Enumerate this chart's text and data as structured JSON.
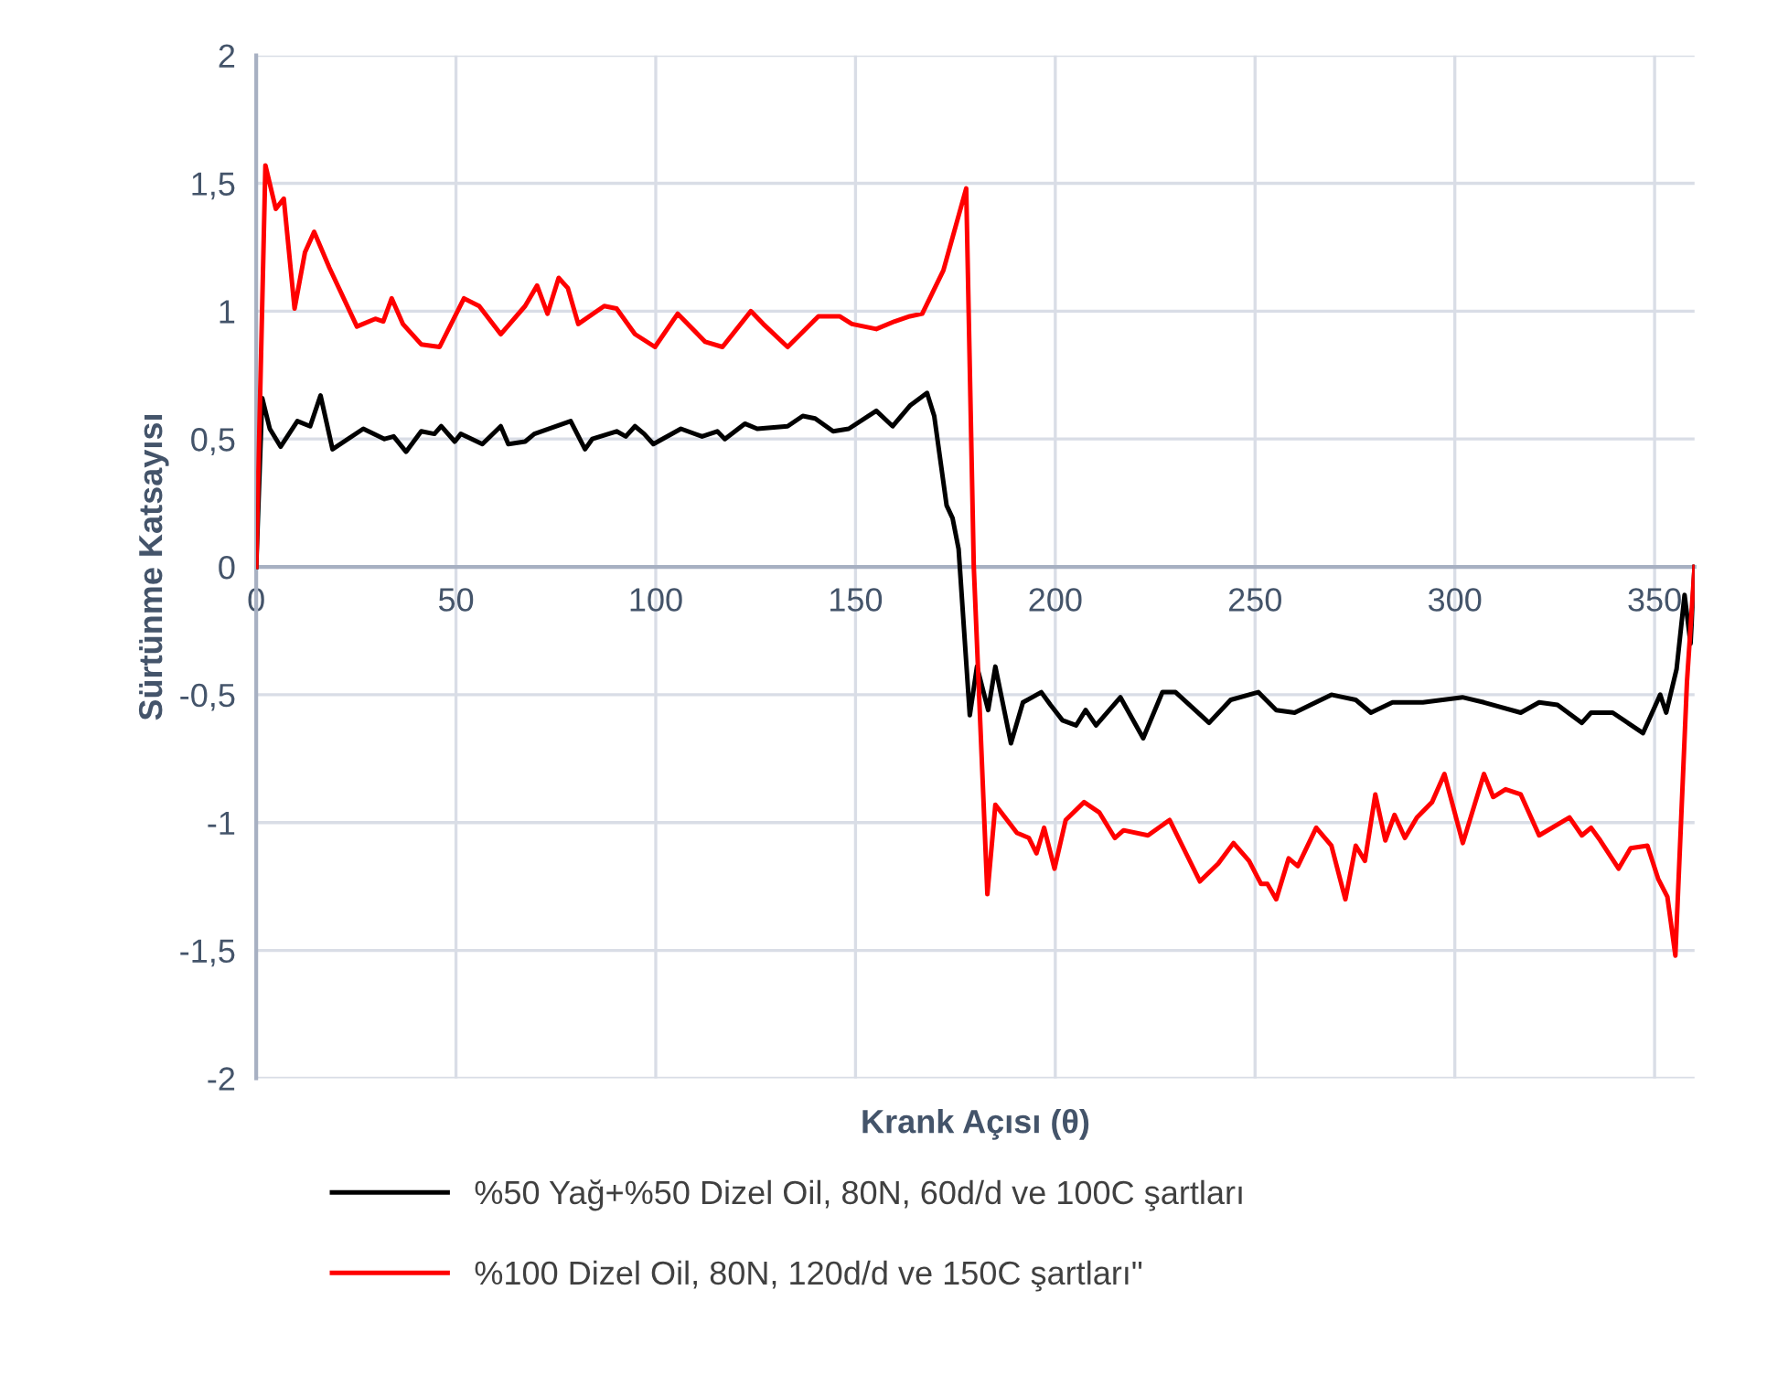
{
  "chart_data": {
    "type": "line",
    "xlabel": "Krank Açısı (θ)",
    "ylabel": "Sürtünme Katsayısı",
    "xlim": [
      0,
      360
    ],
    "xticks": [
      0,
      50,
      100,
      150,
      200,
      250,
      300,
      350
    ],
    "ylim": [
      -2,
      2
    ],
    "yticks": [
      {
        "value": -2,
        "label": "-2"
      },
      {
        "value": -1.5,
        "label": "-1,5"
      },
      {
        "value": -1,
        "label": "-1"
      },
      {
        "value": -0.5,
        "label": "-0,5"
      },
      {
        "value": 0,
        "label": "0"
      },
      {
        "value": 0.5,
        "label": "0,5"
      },
      {
        "value": 1,
        "label": "1"
      },
      {
        "value": 1.5,
        "label": "1,5"
      },
      {
        "value": 2,
        "label": "2"
      }
    ],
    "grid": true,
    "legend": "bottom",
    "marker": "none",
    "line_style": "solid",
    "series": [
      {
        "name": "%50 Yağ+%50 Dizel Oil, 80N, 60d/d ve 100C şartları",
        "color": "#000000",
        "x": [
          0,
          1.5,
          3.4,
          6.1,
          10.3,
          13.5,
          16.1,
          19.1,
          26.8,
          32.1,
          34.4,
          37.5,
          41.3,
          44.6,
          46.3,
          49.7,
          51.2,
          56.6,
          61.2,
          63.1,
          67.3,
          69.6,
          78.7,
          82.3,
          84.1,
          90.2,
          92.5,
          94.8,
          97.1,
          99.4,
          106.3,
          111.6,
          115.4,
          117.3,
          122.3,
          125.4,
          133,
          136.8,
          139.9,
          144.4,
          148.3,
          155.2,
          159.3,
          163.6,
          167.9,
          169.7,
          172.8,
          174.3,
          175.8,
          178.6,
          180.4,
          183.2,
          185,
          188.9,
          191.9,
          196.5,
          198.8,
          201.8,
          205.2,
          207.6,
          210.2,
          216.3,
          222,
          226.8,
          230.1,
          238.5,
          243.9,
          250.8,
          255.3,
          259.9,
          269.1,
          275.2,
          279,
          284.4,
          292,
          301.9,
          307.3,
          316.5,
          321.1,
          325.7,
          331.8,
          334.1,
          339.5,
          347.1,
          351.4,
          352.9,
          355.5,
          357.5,
          359,
          360
        ],
        "values": [
          0,
          0.66,
          0.54,
          0.47,
          0.57,
          0.55,
          0.67,
          0.46,
          0.54,
          0.5,
          0.51,
          0.45,
          0.53,
          0.52,
          0.55,
          0.49,
          0.52,
          0.48,
          0.55,
          0.48,
          0.49,
          0.52,
          0.57,
          0.46,
          0.5,
          0.53,
          0.51,
          0.55,
          0.52,
          0.48,
          0.54,
          0.51,
          0.53,
          0.5,
          0.56,
          0.54,
          0.55,
          0.59,
          0.58,
          0.53,
          0.54,
          0.61,
          0.55,
          0.63,
          0.68,
          0.59,
          0.24,
          0.19,
          0.07,
          -0.58,
          -0.39,
          -0.56,
          -0.39,
          -0.69,
          -0.53,
          -0.49,
          -0.54,
          -0.6,
          -0.62,
          -0.56,
          -0.62,
          -0.51,
          -0.67,
          -0.49,
          -0.49,
          -0.61,
          -0.52,
          -0.49,
          -0.56,
          -0.57,
          -0.5,
          -0.52,
          -0.57,
          -0.53,
          -0.53,
          -0.51,
          -0.53,
          -0.57,
          -0.53,
          -0.54,
          -0.61,
          -0.57,
          -0.57,
          -0.65,
          -0.5,
          -0.57,
          -0.4,
          -0.11,
          -0.3,
          0
        ]
      },
      {
        "name": "%100 Dizel Oil, 80N, 120d/d ve 150C şartları\"",
        "color": "#ff0000",
        "x": [
          0,
          2.3,
          4.9,
          6.9,
          9.6,
          12.2,
          14.5,
          18.3,
          25.2,
          29.8,
          31.8,
          33.9,
          36.7,
          41.3,
          45.9,
          52,
          55.8,
          61.2,
          67.3,
          70.3,
          72.9,
          75.7,
          78,
          80.6,
          87.1,
          90.2,
          94.8,
          99.8,
          105.5,
          112.4,
          116.7,
          123.8,
          126.9,
          133,
          140.7,
          146,
          149.1,
          155.2,
          159.8,
          163.6,
          166.7,
          172,
          177.7,
          179.6,
          183,
          185,
          190.4,
          193.4,
          195.3,
          197.2,
          199.8,
          202.6,
          207.2,
          211,
          214.9,
          217.1,
          223.2,
          228.6,
          232.4,
          236.2,
          240.8,
          244.6,
          248.5,
          251.5,
          253.1,
          255.3,
          258.4,
          260.7,
          265.3,
          269.1,
          272.6,
          275.2,
          277.5,
          280.1,
          282.6,
          284.9,
          287.5,
          290.5,
          294.3,
          297.4,
          302,
          307.3,
          309.6,
          312.7,
          316.5,
          321.1,
          328.7,
          331.8,
          334.1,
          336.4,
          341,
          344,
          348.2,
          350.9,
          353.2,
          355.2,
          358.1,
          360
        ],
        "values": [
          0,
          1.57,
          1.4,
          1.44,
          1.01,
          1.23,
          1.31,
          1.17,
          0.94,
          0.97,
          0.96,
          1.05,
          0.95,
          0.87,
          0.86,
          1.05,
          1.02,
          0.91,
          1.02,
          1.1,
          0.99,
          1.13,
          1.09,
          0.95,
          1.02,
          1.01,
          0.91,
          0.86,
          0.99,
          0.88,
          0.86,
          1.0,
          0.95,
          0.86,
          0.98,
          0.98,
          0.95,
          0.93,
          0.96,
          0.98,
          0.99,
          1.16,
          1.48,
          0,
          -1.28,
          -0.93,
          -1.04,
          -1.06,
          -1.12,
          -1.02,
          -1.18,
          -0.99,
          -0.92,
          -0.96,
          -1.06,
          -1.03,
          -1.05,
          -0.99,
          -1.11,
          -1.23,
          -1.16,
          -1.08,
          -1.15,
          -1.24,
          -1.24,
          -1.3,
          -1.14,
          -1.17,
          -1.02,
          -1.09,
          -1.3,
          -1.09,
          -1.15,
          -0.89,
          -1.07,
          -0.97,
          -1.06,
          -0.98,
          -0.92,
          -0.81,
          -1.08,
          -0.81,
          -0.9,
          -0.87,
          -0.89,
          -1.05,
          -0.98,
          -1.05,
          -1.02,
          -1.07,
          -1.18,
          -1.1,
          -1.09,
          -1.22,
          -1.29,
          -1.52,
          -0.45,
          0
        ]
      }
    ]
  }
}
